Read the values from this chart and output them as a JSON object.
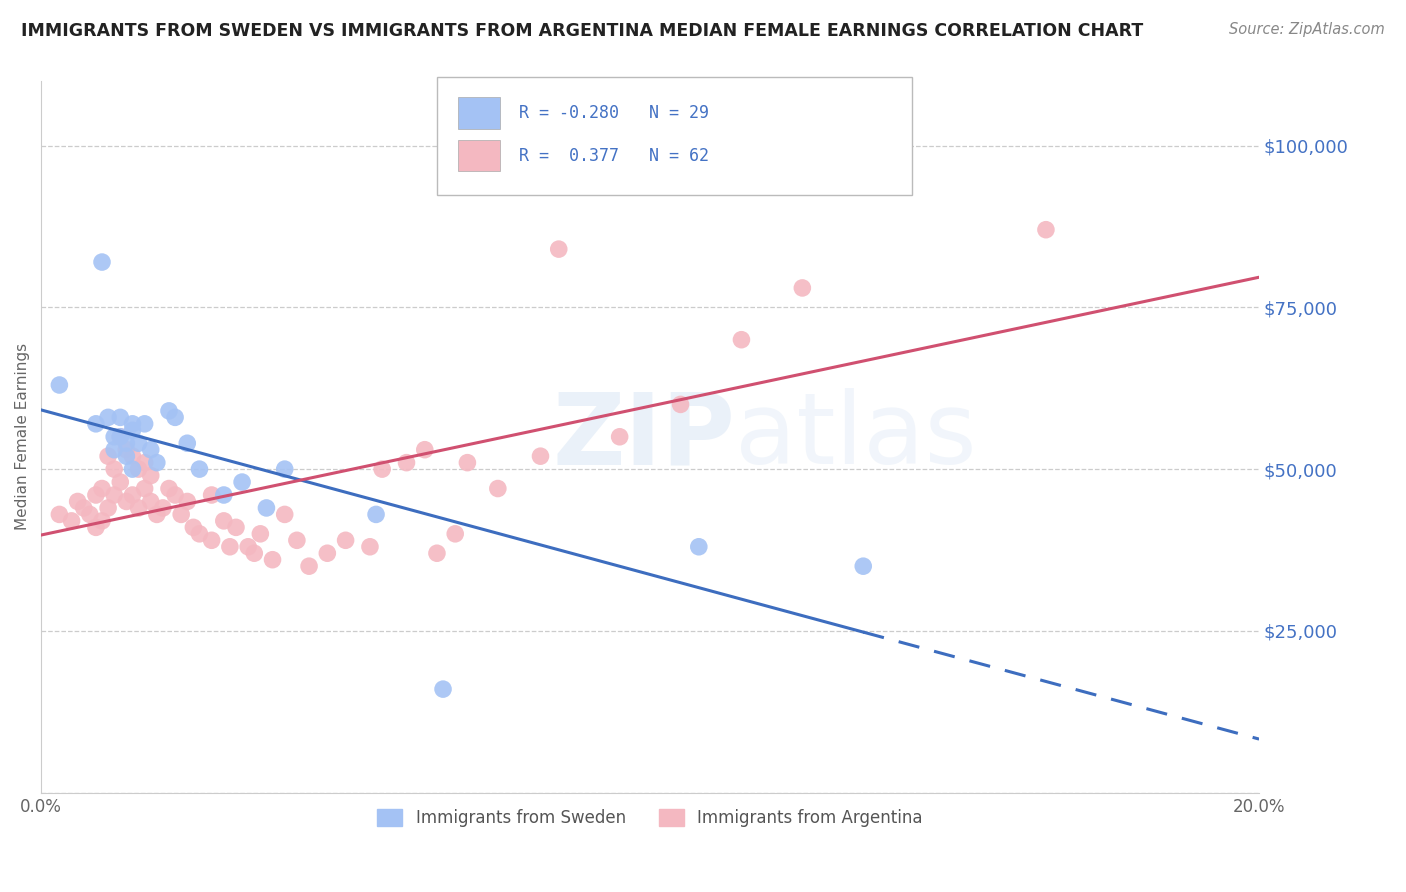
{
  "title": "IMMIGRANTS FROM SWEDEN VS IMMIGRANTS FROM ARGENTINA MEDIAN FEMALE EARNINGS CORRELATION CHART",
  "source": "Source: ZipAtlas.com",
  "ylabel": "Median Female Earnings",
  "xmin": 0.0,
  "xmax": 0.2,
  "ymin": 0,
  "ymax": 110000,
  "yticks": [
    0,
    25000,
    50000,
    75000,
    100000
  ],
  "ytick_labels": [
    "",
    "$25,000",
    "$50,000",
    "$75,000",
    "$100,000"
  ],
  "xticks": [
    0.0,
    0.05,
    0.1,
    0.15,
    0.2
  ],
  "xtick_labels": [
    "0.0%",
    "",
    "",
    "",
    "20.0%"
  ],
  "blue_color": "#a4c2f4",
  "pink_color": "#f4b8c1",
  "blue_line_color": "#3d6dbf",
  "pink_line_color": "#d05070",
  "legend_R_blue": "-0.280",
  "legend_N_blue": "29",
  "legend_R_pink": "0.377",
  "legend_N_pink": "62",
  "watermark": "ZIPAtlas",
  "background_color": "#ffffff",
  "grid_color": "#c0c0c0",
  "title_color": "#222222",
  "axis_label_color": "#666666",
  "ytick_label_color": "#4472c4",
  "sweden_x": [
    0.003,
    0.009,
    0.01,
    0.011,
    0.012,
    0.012,
    0.013,
    0.013,
    0.014,
    0.014,
    0.015,
    0.015,
    0.015,
    0.016,
    0.017,
    0.018,
    0.019,
    0.021,
    0.022,
    0.024,
    0.026,
    0.03,
    0.033,
    0.037,
    0.04,
    0.055,
    0.066,
    0.108,
    0.135
  ],
  "sweden_y": [
    63000,
    57000,
    82000,
    58000,
    55000,
    53000,
    58000,
    55000,
    52000,
    54000,
    50000,
    56000,
    57000,
    54000,
    57000,
    53000,
    51000,
    59000,
    58000,
    54000,
    50000,
    46000,
    48000,
    44000,
    50000,
    43000,
    16000,
    38000,
    35000
  ],
  "argentina_x": [
    0.003,
    0.005,
    0.006,
    0.007,
    0.008,
    0.009,
    0.009,
    0.01,
    0.01,
    0.011,
    0.011,
    0.012,
    0.012,
    0.013,
    0.013,
    0.014,
    0.014,
    0.015,
    0.015,
    0.016,
    0.016,
    0.017,
    0.017,
    0.018,
    0.018,
    0.019,
    0.02,
    0.021,
    0.022,
    0.023,
    0.024,
    0.025,
    0.026,
    0.028,
    0.028,
    0.03,
    0.031,
    0.032,
    0.034,
    0.035,
    0.036,
    0.038,
    0.04,
    0.042,
    0.044,
    0.047,
    0.05,
    0.054,
    0.056,
    0.06,
    0.063,
    0.065,
    0.068,
    0.07,
    0.075,
    0.082,
    0.085,
    0.095,
    0.105,
    0.115,
    0.125,
    0.165
  ],
  "argentina_y": [
    43000,
    42000,
    45000,
    44000,
    43000,
    46000,
    41000,
    47000,
    42000,
    52000,
    44000,
    50000,
    46000,
    55000,
    48000,
    53000,
    45000,
    52000,
    46000,
    50000,
    44000,
    51000,
    47000,
    49000,
    45000,
    43000,
    44000,
    47000,
    46000,
    43000,
    45000,
    41000,
    40000,
    46000,
    39000,
    42000,
    38000,
    41000,
    38000,
    37000,
    40000,
    36000,
    43000,
    39000,
    35000,
    37000,
    39000,
    38000,
    50000,
    51000,
    53000,
    37000,
    40000,
    51000,
    47000,
    52000,
    84000,
    55000,
    60000,
    70000,
    78000,
    87000
  ]
}
